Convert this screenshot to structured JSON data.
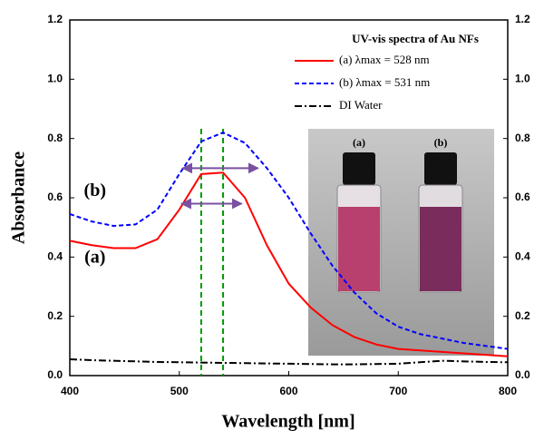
{
  "chart_data": {
    "type": "line",
    "xlabel": "Wavelength [nm]",
    "ylabel": "Absorbance",
    "legend_title": "UV-vis spectra of Au NFs",
    "x": [
      400,
      420,
      440,
      460,
      480,
      500,
      520,
      540,
      560,
      580,
      600,
      620,
      640,
      660,
      680,
      700,
      720,
      740,
      760,
      780,
      800
    ],
    "series": [
      {
        "name": "(a) λmax = 528 nm",
        "color": "#ff0000",
        "dash": "solid",
        "values": [
          0.455,
          0.44,
          0.43,
          0.43,
          0.46,
          0.56,
          0.68,
          0.685,
          0.6,
          0.44,
          0.31,
          0.23,
          0.17,
          0.13,
          0.105,
          0.09,
          0.085,
          0.08,
          0.075,
          0.07,
          0.065
        ]
      },
      {
        "name": "(b) λmax = 531 nm",
        "color": "#0000ff",
        "dash": "dashed",
        "values": [
          0.545,
          0.52,
          0.505,
          0.51,
          0.56,
          0.68,
          0.79,
          0.82,
          0.785,
          0.7,
          0.6,
          0.48,
          0.37,
          0.28,
          0.21,
          0.165,
          0.14,
          0.125,
          0.11,
          0.1,
          0.09
        ]
      },
      {
        "name": "DI Water",
        "color": "#000000",
        "dash": "dashdot",
        "values": [
          0.055,
          0.052,
          0.05,
          0.048,
          0.046,
          0.045,
          0.044,
          0.043,
          0.042,
          0.041,
          0.04,
          0.039,
          0.038,
          0.038,
          0.039,
          0.04,
          0.045,
          0.05,
          0.048,
          0.046,
          0.045
        ]
      }
    ],
    "xlim": [
      400,
      800
    ],
    "xticks": [
      400,
      500,
      600,
      700,
      800
    ],
    "ylim": [
      0,
      1.2
    ],
    "yticks": [
      {
        "value": 0,
        "label": "0.0"
      },
      0.2,
      0.4,
      0.6,
      0.8,
      {
        "value": 1,
        "label": "1.0"
      },
      1.2
    ],
    "vlines": [
      520,
      540
    ],
    "vline_color": "#009900",
    "arrows": [
      {
        "x": [
          503,
          572
        ],
        "y": 0.7
      },
      {
        "x": [
          502,
          557
        ],
        "y": 0.58
      }
    ],
    "arrow_color": "#7a50a0",
    "curve_labels": [
      {
        "text": "(b)",
        "x": 423,
        "y": 0.62
      },
      {
        "text": "(a)",
        "x": 423,
        "y": 0.395
      }
    ],
    "inset_labels": [
      "(a)",
      "(b)"
    ]
  }
}
